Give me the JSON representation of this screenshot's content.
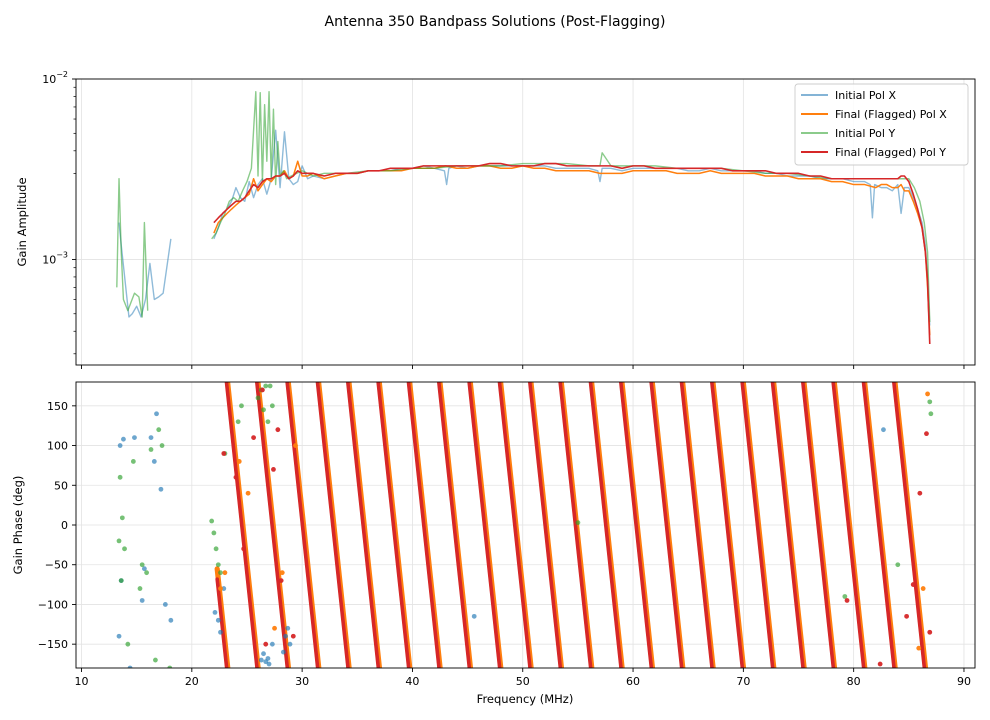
{
  "figure": {
    "title": "Antenna 350 Bandpass Solutions (Post-Flagging)"
  },
  "chart_data": [
    {
      "type": "line",
      "name": "amplitude",
      "ylabel": "Gain Amplitude",
      "xlabel": "",
      "yscale": "log",
      "xlim": [
        9.5,
        91
      ],
      "ylim": [
        0.00026,
        0.01
      ],
      "x_ticks": [
        10,
        20,
        30,
        40,
        50,
        60,
        70,
        80,
        90
      ],
      "y_tick_labels": [
        {
          "value": 0.01,
          "base": "10",
          "exp": "−2"
        },
        {
          "value": 0.001,
          "base": "10",
          "exp": "−3"
        }
      ],
      "grid": true,
      "legend_position": "top-right",
      "legend": [
        "Initial Pol X",
        "Final (Flagged) Pol X",
        "Initial Pol Y",
        "Final (Flagged) Pol Y"
      ],
      "colors": [
        "#1f77b4",
        "#ff7f0e",
        "#2ca02c",
        "#d62728"
      ],
      "series": [
        {
          "name": "Initial Pol X",
          "x": [
            13.4,
            13.6,
            14.3,
            14.6,
            15.0,
            15.4,
            15.8,
            16.2,
            16.6,
            17.0,
            17.4,
            18.1,
            22.0,
            22.4,
            22.8,
            23.2,
            23.6,
            24.0,
            24.4,
            24.8,
            25.2,
            25.6,
            26.0,
            26.4,
            26.8,
            27.2,
            27.6,
            28.0,
            28.4,
            28.8,
            29.2,
            29.6,
            30.0,
            30.5,
            31.0,
            32.0,
            33.0,
            34.0,
            35.0,
            36.0,
            37.0,
            38.0,
            39.0,
            40.0,
            41.0,
            42.0,
            42.9,
            43.1,
            43.3,
            44.0,
            45.0,
            46.0,
            47.0,
            48.0,
            49.0,
            50.0,
            51.0,
            52.0,
            53.0,
            54.0,
            55.0,
            56.0,
            56.8,
            57.0,
            57.2,
            58.0,
            59.0,
            60.0,
            61.0,
            62.0,
            63.0,
            64.0,
            65.0,
            66.0,
            67.0,
            68.0,
            69.0,
            70.0,
            71.0,
            72.0,
            73.0,
            74.0,
            75.0,
            76.0,
            77.0,
            78.0,
            79.0,
            80.0,
            81.0,
            81.5,
            81.7,
            81.9,
            82.5,
            83.0,
            83.5,
            84.0,
            84.3,
            84.6,
            85.0,
            85.4,
            85.8,
            86.2,
            86.5,
            86.7,
            86.9
          ],
          "y": [
            0.0016,
            0.0012,
            0.00048,
            0.0005,
            0.00055,
            0.00048,
            0.0006,
            0.00095,
            0.0006,
            0.00062,
            0.00065,
            0.0013,
            0.0013,
            0.0015,
            0.0018,
            0.0019,
            0.0021,
            0.0025,
            0.0022,
            0.0021,
            0.0027,
            0.0022,
            0.0026,
            0.0028,
            0.0023,
            0.0028,
            0.0052,
            0.0025,
            0.0051,
            0.0028,
            0.0026,
            0.0027,
            0.0033,
            0.0028,
            0.0029,
            0.0028,
            0.0029,
            0.003,
            0.003,
            0.0031,
            0.0031,
            0.0031,
            0.0032,
            0.0032,
            0.0033,
            0.0032,
            0.0031,
            0.0026,
            0.0032,
            0.0033,
            0.0032,
            0.0033,
            0.0033,
            0.0033,
            0.0033,
            0.0033,
            0.0033,
            0.0033,
            0.0032,
            0.0032,
            0.0032,
            0.0032,
            0.0031,
            0.0027,
            0.0032,
            0.0032,
            0.0031,
            0.0032,
            0.0032,
            0.0032,
            0.0032,
            0.0032,
            0.0031,
            0.0031,
            0.0032,
            0.0031,
            0.0031,
            0.0031,
            0.0031,
            0.003,
            0.003,
            0.0029,
            0.0029,
            0.0029,
            0.0028,
            0.0028,
            0.0028,
            0.0027,
            0.0027,
            0.0026,
            0.0017,
            0.0026,
            0.0025,
            0.0025,
            0.0024,
            0.0026,
            0.0018,
            0.0025,
            0.0025,
            0.0022,
            0.0019,
            0.0016,
            0.0012,
            0.0008,
            0.00043
          ]
        },
        {
          "name": "Final (Flagged) Pol X",
          "x": [
            22.0,
            22.4,
            22.8,
            23.2,
            23.6,
            24.0,
            24.4,
            24.8,
            25.2,
            25.6,
            26.0,
            26.4,
            26.8,
            27.2,
            27.6,
            28.0,
            28.4,
            28.8,
            29.2,
            29.6,
            30.0,
            30.5,
            31.0,
            32.0,
            33.0,
            34.0,
            35.0,
            36.0,
            37.0,
            38.0,
            39.0,
            40.0,
            41.0,
            42.0,
            43.0,
            44.0,
            45.0,
            46.0,
            47.0,
            48.0,
            49.0,
            50.0,
            51.0,
            52.0,
            53.0,
            54.0,
            55.0,
            56.0,
            57.0,
            58.0,
            59.0,
            60.0,
            61.0,
            62.0,
            63.0,
            64.0,
            65.0,
            66.0,
            67.0,
            68.0,
            69.0,
            70.0,
            71.0,
            72.0,
            73.0,
            74.0,
            75.0,
            76.0,
            77.0,
            78.0,
            79.0,
            80.0,
            81.0,
            82.0,
            82.5,
            83.0,
            83.5,
            84.0,
            84.3,
            84.6,
            85.0,
            85.4,
            85.8,
            86.2,
            86.5,
            86.7,
            86.9
          ],
          "y": [
            0.0014,
            0.0016,
            0.0017,
            0.0018,
            0.0019,
            0.002,
            0.0021,
            0.0022,
            0.0023,
            0.0028,
            0.0024,
            0.0026,
            0.0028,
            0.0027,
            0.0029,
            0.0029,
            0.0031,
            0.0028,
            0.0029,
            0.0035,
            0.0029,
            0.0029,
            0.003,
            0.0028,
            0.0029,
            0.003,
            0.003,
            0.0031,
            0.0031,
            0.0031,
            0.0031,
            0.0032,
            0.0032,
            0.0032,
            0.0033,
            0.0032,
            0.0032,
            0.0033,
            0.0033,
            0.0032,
            0.0032,
            0.0033,
            0.0032,
            0.0032,
            0.0031,
            0.0031,
            0.0031,
            0.0031,
            0.003,
            0.003,
            0.003,
            0.0031,
            0.0031,
            0.0031,
            0.0031,
            0.003,
            0.003,
            0.003,
            0.0031,
            0.003,
            0.003,
            0.003,
            0.003,
            0.0029,
            0.0029,
            0.0029,
            0.0028,
            0.0028,
            0.0028,
            0.0027,
            0.0027,
            0.0026,
            0.0026,
            0.0025,
            0.0026,
            0.0026,
            0.0025,
            0.0025,
            0.0026,
            0.0024,
            0.0024,
            0.0021,
            0.0018,
            0.0015,
            0.0011,
            0.0007,
            0.00038
          ]
        },
        {
          "name": "Initial Pol Y",
          "x": [
            13.2,
            13.4,
            13.6,
            13.8,
            14.2,
            14.8,
            15.2,
            15.5,
            15.7,
            16.0,
            21.8,
            22.2,
            22.6,
            23.0,
            23.4,
            23.8,
            24.2,
            24.6,
            25.0,
            25.4,
            25.8,
            26.0,
            26.2,
            26.4,
            26.6,
            26.8,
            27.0,
            27.2,
            27.4,
            27.6,
            27.8,
            28.0,
            28.3,
            28.6,
            29.0,
            30.0,
            31.0,
            32.0,
            34.0,
            36.0,
            38.0,
            40.0,
            42.0,
            44.0,
            46.0,
            48.0,
            50.0,
            52.0,
            54.0,
            56.0,
            57.0,
            57.2,
            58.0,
            60.0,
            62.0,
            64.0,
            66.0,
            68.0,
            70.0,
            72.0,
            74.0,
            76.0,
            78.0,
            80.0,
            82.0,
            84.0,
            85.0,
            85.5,
            86.0,
            86.4,
            86.7,
            86.9
          ],
          "y": [
            0.0007,
            0.0028,
            0.0011,
            0.0006,
            0.00052,
            0.00065,
            0.00062,
            0.00048,
            0.0016,
            0.00052,
            0.0013,
            0.0014,
            0.0016,
            0.0018,
            0.0021,
            0.0022,
            0.0021,
            0.0024,
            0.0027,
            0.0032,
            0.0085,
            0.0029,
            0.0084,
            0.0027,
            0.0072,
            0.0035,
            0.0085,
            0.0028,
            0.0068,
            0.0026,
            0.0045,
            0.0029,
            0.0031,
            0.0028,
            0.0029,
            0.0031,
            0.0029,
            0.003,
            0.003,
            0.0031,
            0.0031,
            0.0032,
            0.0032,
            0.0033,
            0.0033,
            0.0033,
            0.0034,
            0.0034,
            0.0034,
            0.0033,
            0.0033,
            0.0039,
            0.0033,
            0.0033,
            0.0033,
            0.0032,
            0.0032,
            0.0032,
            0.0031,
            0.003,
            0.003,
            0.0029,
            0.0028,
            0.0028,
            0.0028,
            0.0028,
            0.0028,
            0.0025,
            0.0021,
            0.0016,
            0.0011,
            0.00045
          ]
        },
        {
          "name": "Final (Flagged) Pol Y",
          "x": [
            22.0,
            22.4,
            22.8,
            23.2,
            23.6,
            24.0,
            24.4,
            24.8,
            25.2,
            25.6,
            26.0,
            26.4,
            26.8,
            27.2,
            27.6,
            28.0,
            28.4,
            28.8,
            29.2,
            29.6,
            30.0,
            30.5,
            31.0,
            32.0,
            33.0,
            34.0,
            35.0,
            36.0,
            37.0,
            38.0,
            39.0,
            40.0,
            41.0,
            42.0,
            43.0,
            44.0,
            45.0,
            46.0,
            47.0,
            48.0,
            49.0,
            50.0,
            51.0,
            52.0,
            53.0,
            54.0,
            55.0,
            56.0,
            57.0,
            58.0,
            59.0,
            60.0,
            61.0,
            62.0,
            63.0,
            64.0,
            65.0,
            66.0,
            67.0,
            68.0,
            69.0,
            70.0,
            71.0,
            72.0,
            73.0,
            74.0,
            75.0,
            76.0,
            77.0,
            78.0,
            79.0,
            80.0,
            81.0,
            82.0,
            82.5,
            83.0,
            83.5,
            84.0,
            84.3,
            84.6,
            85.0,
            85.4,
            85.8,
            86.2,
            86.5,
            86.7,
            86.9
          ],
          "y": [
            0.0016,
            0.0017,
            0.0018,
            0.0019,
            0.002,
            0.0021,
            0.0021,
            0.0022,
            0.0024,
            0.0026,
            0.0025,
            0.0027,
            0.0028,
            0.0028,
            0.0029,
            0.0029,
            0.003,
            0.0028,
            0.0029,
            0.0031,
            0.003,
            0.003,
            0.003,
            0.0029,
            0.003,
            0.003,
            0.003,
            0.0031,
            0.0031,
            0.0032,
            0.0032,
            0.0032,
            0.0033,
            0.0033,
            0.0033,
            0.0033,
            0.0033,
            0.0033,
            0.0034,
            0.0034,
            0.0033,
            0.0033,
            0.0033,
            0.0034,
            0.0034,
            0.0033,
            0.0033,
            0.0033,
            0.0033,
            0.0033,
            0.0032,
            0.0033,
            0.0033,
            0.0032,
            0.0032,
            0.0032,
            0.0032,
            0.0032,
            0.0032,
            0.0032,
            0.0031,
            0.0031,
            0.0031,
            0.0031,
            0.003,
            0.003,
            0.003,
            0.0029,
            0.0029,
            0.0028,
            0.0028,
            0.0028,
            0.0028,
            0.0028,
            0.0028,
            0.0028,
            0.0028,
            0.0028,
            0.0029,
            0.0029,
            0.0027,
            0.0023,
            0.0019,
            0.0015,
            0.0011,
            0.00075,
            0.00034
          ]
        }
      ]
    },
    {
      "type": "scatter",
      "name": "phase",
      "ylabel": "Gain Phase (deg)",
      "xlabel": "Frequency (MHz)",
      "xlim": [
        9.5,
        91
      ],
      "ylim": [
        -180,
        180
      ],
      "x_ticks": [
        10,
        20,
        30,
        40,
        50,
        60,
        70,
        80,
        90
      ],
      "y_ticks": [
        -150,
        -100,
        -50,
        0,
        50,
        100,
        150
      ],
      "grid": true,
      "colors": [
        "#1f77b4",
        "#ff7f0e",
        "#2ca02c",
        "#d62728"
      ],
      "phase_slope_deg_per_mhz": -130,
      "wrap_crossings_mhz": [
        23.2,
        25.95,
        28.7,
        31.45,
        34.2,
        36.95,
        39.7,
        42.45,
        45.2,
        47.95,
        50.7,
        53.45,
        56.2,
        58.95,
        61.7,
        64.45,
        67.2,
        69.95,
        72.7,
        75.45,
        78.2,
        80.95,
        83.7,
        86.45
      ],
      "band_mhz": [
        22.3,
        87.0
      ],
      "series": [
        {
          "name": "Initial Pol X",
          "x": [
            13.4,
            13.5,
            13.6,
            13.8,
            14.4,
            14.8,
            15.5,
            15.7,
            16.3,
            16.6,
            16.8,
            17.2,
            17.6,
            18.1,
            22.1,
            22.4,
            22.6,
            22.9,
            26.3,
            26.5,
            26.7,
            26.9,
            27.0,
            27.3,
            28.3,
            28.5,
            28.7,
            28.9,
            45.6,
            82.7
          ],
          "y": [
            -140,
            100,
            -70,
            108,
            -180,
            110,
            -95,
            -55,
            110,
            80,
            140,
            45,
            -100,
            -120,
            -110,
            -120,
            -135,
            -80,
            -170,
            -162,
            -172,
            -168,
            -175,
            -150,
            -160,
            -140,
            -130,
            -150,
            -115,
            120
          ]
        },
        {
          "name": "Final (Flagged) Pol X",
          "x": [
            22.6,
            23.0,
            24.3,
            25.1,
            27.5,
            28.2,
            29.4,
            85.9,
            86.3,
            86.7
          ],
          "y": [
            -80,
            -60,
            80,
            40,
            -130,
            -60,
            100,
            -155,
            -80,
            165
          ]
        },
        {
          "name": "Initial Pol Y",
          "x": [
            13.4,
            13.5,
            13.6,
            13.7,
            13.9,
            14.2,
            14.7,
            15.3,
            15.5,
            15.9,
            16.3,
            16.7,
            17.0,
            17.3,
            18.0,
            21.8,
            22.0,
            22.2,
            22.4,
            22.6,
            23.0,
            24.2,
            24.5,
            26.0,
            26.3,
            26.5,
            26.7,
            26.9,
            27.1,
            27.3,
            55.0,
            79.2,
            84.0,
            86.9,
            87.0
          ],
          "y": [
            -20,
            60,
            -70,
            9,
            -30,
            -150,
            80,
            -80,
            -50,
            -60,
            95,
            -170,
            120,
            100,
            -180,
            5,
            -10,
            -30,
            -50,
            -60,
            90,
            130,
            150,
            160,
            170,
            145,
            175,
            130,
            175,
            150,
            3,
            -90,
            -50,
            155,
            140
          ]
        },
        {
          "name": "Final (Flagged) Pol Y",
          "x": [
            22.9,
            24.0,
            24.7,
            25.6,
            26.4,
            26.7,
            27.4,
            27.8,
            28.1,
            29.2,
            79.4,
            82.4,
            84.8,
            85.4,
            86.0,
            86.6,
            86.9
          ],
          "y": [
            90,
            60,
            -30,
            110,
            170,
            -150,
            70,
            120,
            -70,
            -140,
            -95,
            -175,
            -115,
            -75,
            40,
            115,
            -135
          ]
        }
      ]
    }
  ]
}
